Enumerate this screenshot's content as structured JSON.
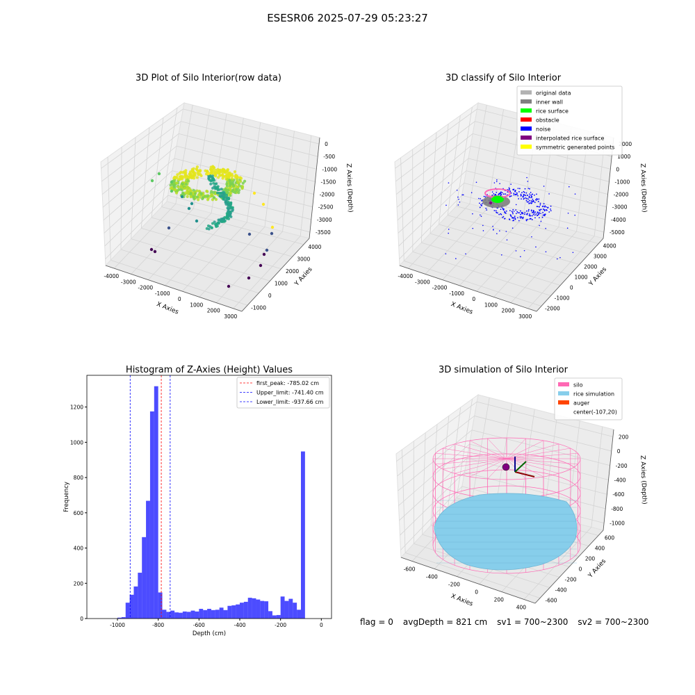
{
  "suptitle": "ESESR06 2025-07-29 05:23:27",
  "status": {
    "flag": "flag = 0",
    "avg_depth": "avgDepth = 821 cm",
    "sv1": "sv1 = 700~2300",
    "sv2": "sv2 = 700~2300"
  },
  "chart_data": [
    {
      "type": "scatter",
      "projection": "3d",
      "title": "3D Plot of Silo Interior(row data)",
      "xlabel": "X Axies",
      "ylabel": "Y Axies",
      "zlabel": "Z Axies (Depth)",
      "x_ticks": [
        "-4000",
        "-3000",
        "-2000",
        "-1000",
        "0",
        "1000",
        "2000",
        "3000"
      ],
      "y_ticks": [
        "-1000",
        "0",
        "1000",
        "2000",
        "3000",
        "4000"
      ],
      "z_ticks": [
        "0",
        "-500",
        "-1000",
        "-1500",
        "-2000",
        "-2500",
        "-3000",
        "-3500"
      ],
      "colormap": "viridis"
    },
    {
      "type": "scatter",
      "projection": "3d",
      "title": "3D classify of Silo Interior",
      "xlabel": "X Axies",
      "ylabel": "Y Axies",
      "zlabel": "Z Axies (Depth)",
      "x_ticks": [
        "-4000",
        "-3000",
        "-2000",
        "-1000",
        "0",
        "1000",
        "2000",
        "3000"
      ],
      "y_ticks": [
        "-2000",
        "-1000",
        "0",
        "1000",
        "2000",
        "3000",
        "4000"
      ],
      "z_ticks": [
        "2000",
        "1000",
        "0",
        "-1000",
        "-2000",
        "-3000",
        "-4000",
        "-5000"
      ],
      "legend_position": "top-right",
      "legend": [
        {
          "label": "original data",
          "color": "#b3b3b3"
        },
        {
          "label": "inner wall",
          "color": "#808080"
        },
        {
          "label": "rice surface",
          "color": "#00ff00"
        },
        {
          "label": "obstacle",
          "color": "#ff0000"
        },
        {
          "label": "noise",
          "color": "#0000ff"
        },
        {
          "label": "interpolated rice surface",
          "color": "#800080"
        },
        {
          "label": "symmetric generated points",
          "color": "#ffff00"
        }
      ]
    },
    {
      "type": "bar",
      "title": "Histogram of Z-Axies (Height) Values",
      "xlabel": "Depth (cm)",
      "ylabel": "Frequency",
      "xlim": [
        -1150,
        50
      ],
      "ylim": [
        0,
        1380
      ],
      "x_ticks": [
        "-1000",
        "-800",
        "-600",
        "-400",
        "-200",
        "0"
      ],
      "y_ticks": [
        "0",
        "200",
        "400",
        "600",
        "800",
        "1000",
        "1200"
      ],
      "bar_color": "#0000ff",
      "bin_width": 20,
      "bins": [
        {
          "x": -980,
          "y": 5
        },
        {
          "x": -960,
          "y": 8
        },
        {
          "x": -940,
          "y": 90
        },
        {
          "x": -920,
          "y": 135
        },
        {
          "x": -900,
          "y": 182
        },
        {
          "x": -880,
          "y": 260
        },
        {
          "x": -860,
          "y": 462
        },
        {
          "x": -840,
          "y": 668
        },
        {
          "x": -820,
          "y": 1175
        },
        {
          "x": -800,
          "y": 1318
        },
        {
          "x": -780,
          "y": 148
        },
        {
          "x": -760,
          "y": 50
        },
        {
          "x": -740,
          "y": 38
        },
        {
          "x": -720,
          "y": 45
        },
        {
          "x": -700,
          "y": 35
        },
        {
          "x": -680,
          "y": 33
        },
        {
          "x": -660,
          "y": 40
        },
        {
          "x": -640,
          "y": 38
        },
        {
          "x": -620,
          "y": 45
        },
        {
          "x": -600,
          "y": 40
        },
        {
          "x": -580,
          "y": 55
        },
        {
          "x": -560,
          "y": 48
        },
        {
          "x": -540,
          "y": 55
        },
        {
          "x": -520,
          "y": 48
        },
        {
          "x": -500,
          "y": 50
        },
        {
          "x": -480,
          "y": 62
        },
        {
          "x": -460,
          "y": 48
        },
        {
          "x": -440,
          "y": 72
        },
        {
          "x": -420,
          "y": 75
        },
        {
          "x": -400,
          "y": 80
        },
        {
          "x": -380,
          "y": 90
        },
        {
          "x": -360,
          "y": 95
        },
        {
          "x": -340,
          "y": 118
        },
        {
          "x": -320,
          "y": 115
        },
        {
          "x": -300,
          "y": 108
        },
        {
          "x": -280,
          "y": 100
        },
        {
          "x": -260,
          "y": 98
        },
        {
          "x": -240,
          "y": 42
        },
        {
          "x": -220,
          "y": 18
        },
        {
          "x": -200,
          "y": 20
        },
        {
          "x": -180,
          "y": 125
        },
        {
          "x": -160,
          "y": 100
        },
        {
          "x": -140,
          "y": 112
        },
        {
          "x": -120,
          "y": 90
        },
        {
          "x": -100,
          "y": 50
        },
        {
          "x": -80,
          "y": 948
        }
      ],
      "lines": [
        {
          "label": "first_peak: -785.02 cm",
          "x": -785.02,
          "color": "#ff0000"
        },
        {
          "label": "Upper_limit: -741.40 cm",
          "x": -741.4,
          "color": "#0000ff"
        },
        {
          "label": "Lower_limit: -937.66 cm",
          "x": -937.66,
          "color": "#0000ff"
        }
      ],
      "legend_position": "top-right"
    },
    {
      "type": "surface",
      "projection": "3d",
      "title": "3D simulation of Silo Interior",
      "xlabel": "X Axies",
      "ylabel": "Y Axies",
      "zlabel": "Z Axies (Depth)",
      "x_ticks": [
        "-600",
        "-400",
        "-200",
        "0",
        "200",
        "400"
      ],
      "y_ticks": [
        "-600",
        "-400",
        "-200",
        "0",
        "200",
        "400",
        "600"
      ],
      "z_ticks": [
        "200",
        "0",
        "-200",
        "-400",
        "-600",
        "-800",
        "-1000"
      ],
      "legend_position": "top-right",
      "legend": [
        {
          "label": "silo",
          "color": "#ff69b4"
        },
        {
          "label": "rice simulation",
          "color": "#87ceeb"
        },
        {
          "label": "auger",
          "color": "#ff4500"
        },
        {
          "label": "center(-107,20)",
          "color": "none"
        }
      ]
    }
  ]
}
